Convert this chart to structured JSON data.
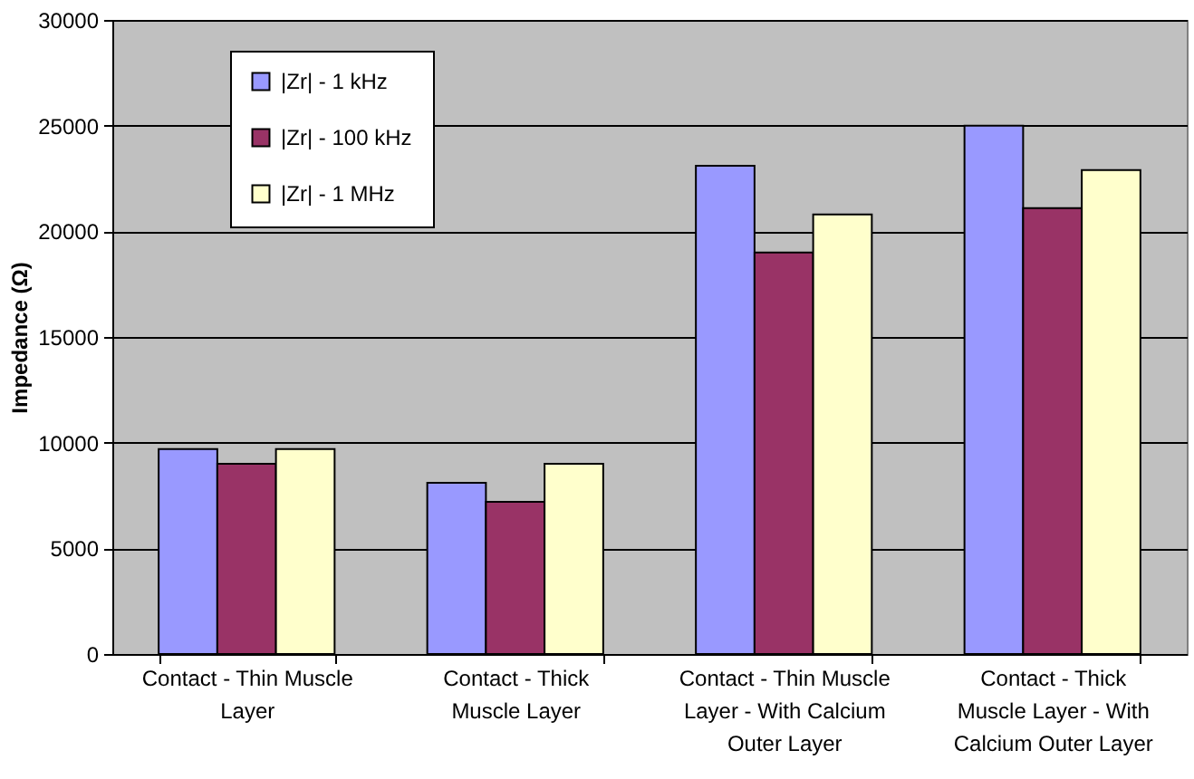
{
  "chart_data": {
    "type": "bar",
    "ylabel": "Impedance (Ω)",
    "categories": [
      "Contact - Thin Muscle Layer",
      "Contact - Thick Muscle Layer",
      "Contact - Thin Muscle Layer - With Calcium Outer Layer",
      "Contact - Thick Muscle Layer - With Calcium Outer Layer"
    ],
    "series": [
      {
        "name": "|Zr| - 1 kHz",
        "color": "#9999ff",
        "values": [
          9700,
          8100,
          23100,
          25000
        ]
      },
      {
        "name": "|Zr| - 100 kHz",
        "color": "#993366",
        "values": [
          9000,
          7200,
          19000,
          21100
        ]
      },
      {
        "name": "|Zr| - 1 MHz",
        "color": "#ffffcc",
        "values": [
          9700,
          9000,
          20800,
          22900
        ]
      }
    ],
    "ylim": [
      0,
      30000
    ],
    "yticks": [
      0,
      5000,
      10000,
      15000,
      20000,
      25000,
      30000
    ],
    "grid": "y",
    "legend": "top left"
  }
}
